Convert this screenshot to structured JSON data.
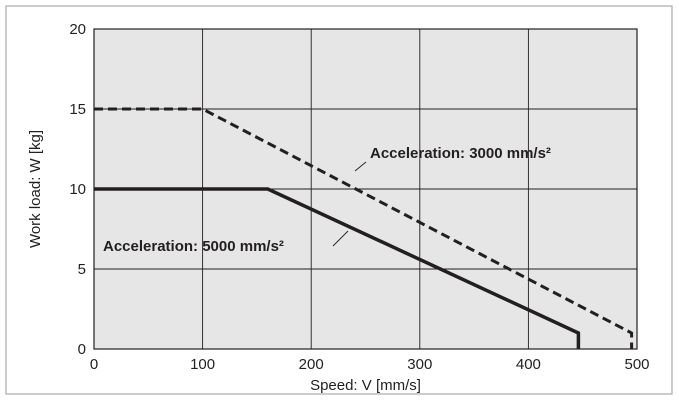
{
  "chart_data": {
    "type": "line",
    "xlabel": "Speed: V [mm/s]",
    "ylabel": "Work load: W [kg]",
    "xlim": [
      0,
      500
    ],
    "ylim": [
      0,
      20
    ],
    "x_ticks": [
      "0",
      "100",
      "200",
      "300",
      "400",
      "500"
    ],
    "y_ticks": [
      "0",
      "5",
      "10",
      "15",
      "20"
    ],
    "grid": true,
    "background_color": "#e6e6e7",
    "series": [
      {
        "label": "Acceleration: 3000 mm/s²",
        "style": "dashed",
        "color": "#231f20",
        "x": [
          0,
          100,
          495,
          495
        ],
        "y": [
          15,
          15,
          1,
          0
        ]
      },
      {
        "label": "Acceleration: 5000 mm/s²",
        "style": "solid",
        "color": "#231f20",
        "x": [
          0,
          160,
          446,
          446
        ],
        "y": [
          10,
          10,
          1,
          0
        ]
      }
    ]
  }
}
